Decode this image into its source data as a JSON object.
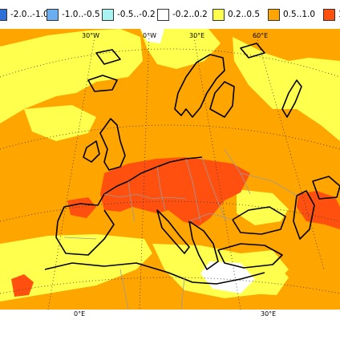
{
  "legend": {
    "items": [
      {
        "label": "-2.0..-1.0",
        "color": "#2f6fd8"
      },
      {
        "label": "-1.0..-0.5",
        "color": "#6aaef2"
      },
      {
        "label": "-0.5..-0.2",
        "color": "#a9f4f2"
      },
      {
        "label": "-0.2..0.2",
        "color": "#ffffff"
      },
      {
        "label": "0.2..0.5",
        "color": "#ffff4d"
      },
      {
        "label": "0.5..1.0",
        "color": "#ffa500"
      },
      {
        "label": "1",
        "color": "#ff5010"
      }
    ]
  },
  "map": {
    "top_longitude_labels": [
      "30°W",
      "0°W",
      "30°E",
      "60°E"
    ],
    "bottom_longitude_labels": [
      "0°E",
      "30°E"
    ],
    "colors": {
      "ocean_base": "#ffa500",
      "light_band": "#ffff4d",
      "hot_core": "#ff5010",
      "neutral": "#ffffff",
      "coastline": "#000000",
      "border": "#9a9a9a",
      "graticule": "#333333"
    }
  }
}
